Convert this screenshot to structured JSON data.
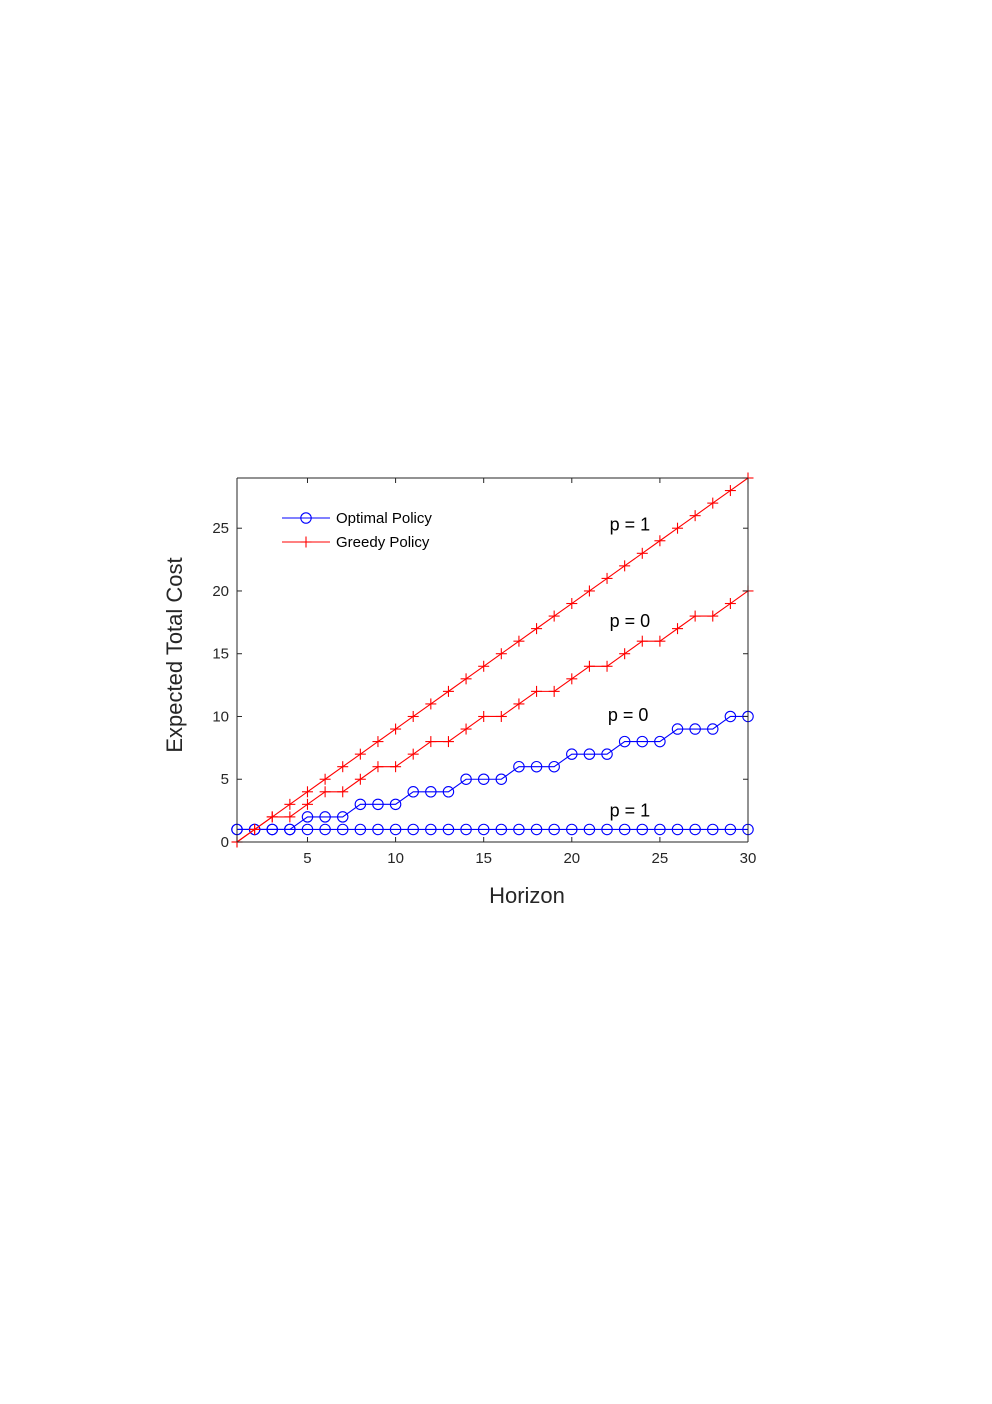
{
  "chart_data": {
    "type": "line",
    "title": "",
    "xlabel": "Horizon",
    "ylabel": "Expected Total Cost",
    "xlim": [
      1,
      30
    ],
    "ylim": [
      0,
      29
    ],
    "xticks": [
      5,
      10,
      15,
      20,
      25,
      30
    ],
    "yticks": [
      0,
      5,
      10,
      15,
      20,
      25
    ],
    "grid": false,
    "legend_position": "top-left",
    "x": [
      1,
      2,
      3,
      4,
      5,
      6,
      7,
      8,
      9,
      10,
      11,
      12,
      13,
      14,
      15,
      16,
      17,
      18,
      19,
      20,
      21,
      22,
      23,
      24,
      25,
      26,
      27,
      28,
      29,
      30
    ],
    "series": [
      {
        "name": "Optimal Policy",
        "color": "#0000ff",
        "marker": "circle",
        "show_in_legend": true,
        "values": [
          1,
          1,
          1,
          1,
          2,
          2,
          2,
          3,
          3,
          3,
          4,
          4,
          4,
          5,
          5,
          5,
          6,
          6,
          6,
          7,
          7,
          7,
          8,
          8,
          8,
          9,
          9,
          9,
          10,
          10
        ]
      },
      {
        "name": "Optimal Policy",
        "color": "#0000ff",
        "marker": "circle",
        "show_in_legend": false,
        "values": [
          1,
          1,
          1,
          1,
          1,
          1,
          1,
          1,
          1,
          1,
          1,
          1,
          1,
          1,
          1,
          1,
          1,
          1,
          1,
          1,
          1,
          1,
          1,
          1,
          1,
          1,
          1,
          1,
          1,
          1
        ]
      },
      {
        "name": "Greedy Policy",
        "color": "#ff0000",
        "marker": "plus",
        "show_in_legend": true,
        "values": [
          0,
          1,
          2,
          3,
          4,
          5,
          6,
          7,
          8,
          9,
          10,
          11,
          12,
          13,
          14,
          15,
          16,
          17,
          18,
          19,
          20,
          21,
          22,
          23,
          24,
          25,
          26,
          27,
          28,
          29
        ]
      },
      {
        "name": "Greedy Policy",
        "color": "#ff0000",
        "marker": "plus",
        "show_in_legend": false,
        "values": [
          0,
          1,
          2,
          2,
          3,
          4,
          4,
          5,
          6,
          6,
          7,
          8,
          8,
          9,
          10,
          10,
          11,
          12,
          12,
          13,
          14,
          14,
          15,
          16,
          16,
          17,
          18,
          18,
          19,
          20
        ]
      }
    ],
    "annotations": [
      {
        "text": "p = 1",
        "x": 23.3,
        "y": 25.3
      },
      {
        "text": "p = 0",
        "x": 23.3,
        "y": 17.6
      },
      {
        "text": "p = 0",
        "x": 23.2,
        "y": 10.1
      },
      {
        "text": "p = 1",
        "x": 23.3,
        "y": 2.5
      }
    ]
  }
}
